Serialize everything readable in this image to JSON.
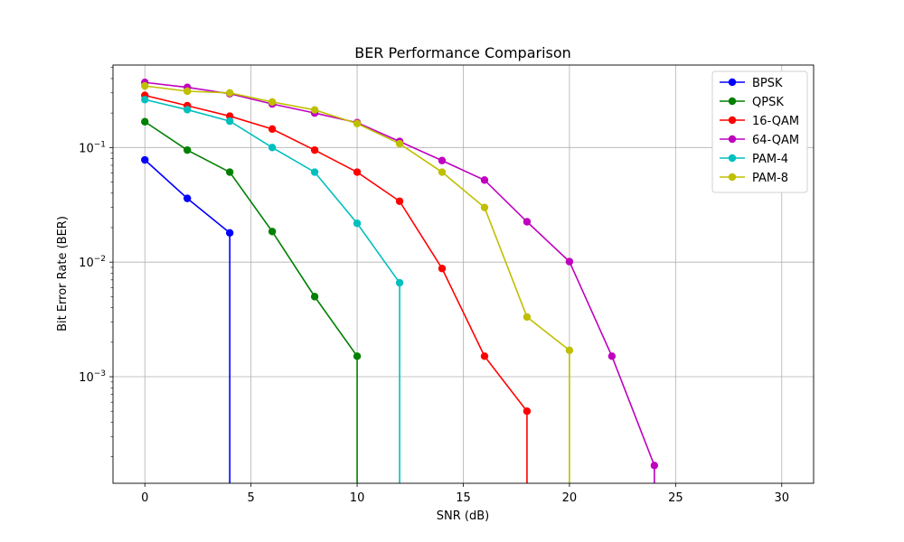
{
  "chart_data": {
    "type": "line",
    "title": "BER Performance Comparison",
    "xlabel": "SNR (dB)",
    "ylabel": "Bit Error Rate (BER)",
    "xlim": [
      -1.5,
      31.5
    ],
    "ylim_log10": [
      -3.93,
      -0.28
    ],
    "yscale": "log",
    "grid": true,
    "legend_position": "top-right",
    "xticks": [
      0,
      5,
      10,
      15,
      20,
      25,
      30
    ],
    "xtick_labels": [
      "0",
      "5",
      "10",
      "15",
      "20",
      "25",
      "30"
    ],
    "yticks": [
      {
        "base": "10",
        "exp": "−1",
        "value": 0.1
      },
      {
        "base": "10",
        "exp": "−2",
        "value": 0.01
      },
      {
        "base": "10",
        "exp": "−3",
        "value": 0.001
      }
    ],
    "series": [
      {
        "name": "BPSK",
        "color": "#0000ff",
        "x": [
          0,
          2,
          4
        ],
        "y": [
          0.078,
          0.036,
          0.018
        ],
        "drop_to_zero_at": 4
      },
      {
        "name": "QPSK",
        "color": "#008000",
        "x": [
          0,
          2,
          4,
          6,
          8,
          10
        ],
        "y": [
          0.168,
          0.095,
          0.061,
          0.0185,
          0.005,
          0.00151
        ],
        "drop_to_zero_at": 10
      },
      {
        "name": "16-QAM",
        "color": "#ff0000",
        "x": [
          0,
          2,
          4,
          6,
          8,
          10,
          12,
          14,
          16,
          18
        ],
        "y": [
          0.285,
          0.232,
          0.188,
          0.145,
          0.095,
          0.061,
          0.034,
          0.0088,
          0.00151,
          0.0005
        ],
        "drop_to_zero_at": 18
      },
      {
        "name": "64-QAM",
        "color": "#bf00bf",
        "x": [
          0,
          2,
          4,
          6,
          8,
          10,
          12,
          14,
          16,
          18,
          20,
          22,
          24
        ],
        "y": [
          0.37,
          0.335,
          0.295,
          0.24,
          0.2,
          0.165,
          0.113,
          0.077,
          0.052,
          0.0225,
          0.0101,
          0.00151,
          0.000168
        ],
        "drop_to_zero_at": 24
      },
      {
        "name": "PAM-4",
        "color": "#00bfbf",
        "x": [
          0,
          2,
          4,
          6,
          8,
          10,
          12
        ],
        "y": [
          0.262,
          0.214,
          0.17,
          0.1,
          0.061,
          0.0218,
          0.0066
        ],
        "drop_to_zero_at": 12
      },
      {
        "name": "PAM-8",
        "color": "#bfbf00",
        "x": [
          0,
          2,
          4,
          6,
          8,
          10,
          12,
          14,
          16,
          18,
          20
        ],
        "y": [
          0.345,
          0.31,
          0.3,
          0.25,
          0.213,
          0.162,
          0.108,
          0.061,
          0.03,
          0.00332,
          0.0017
        ],
        "drop_to_zero_at": 20
      }
    ]
  }
}
